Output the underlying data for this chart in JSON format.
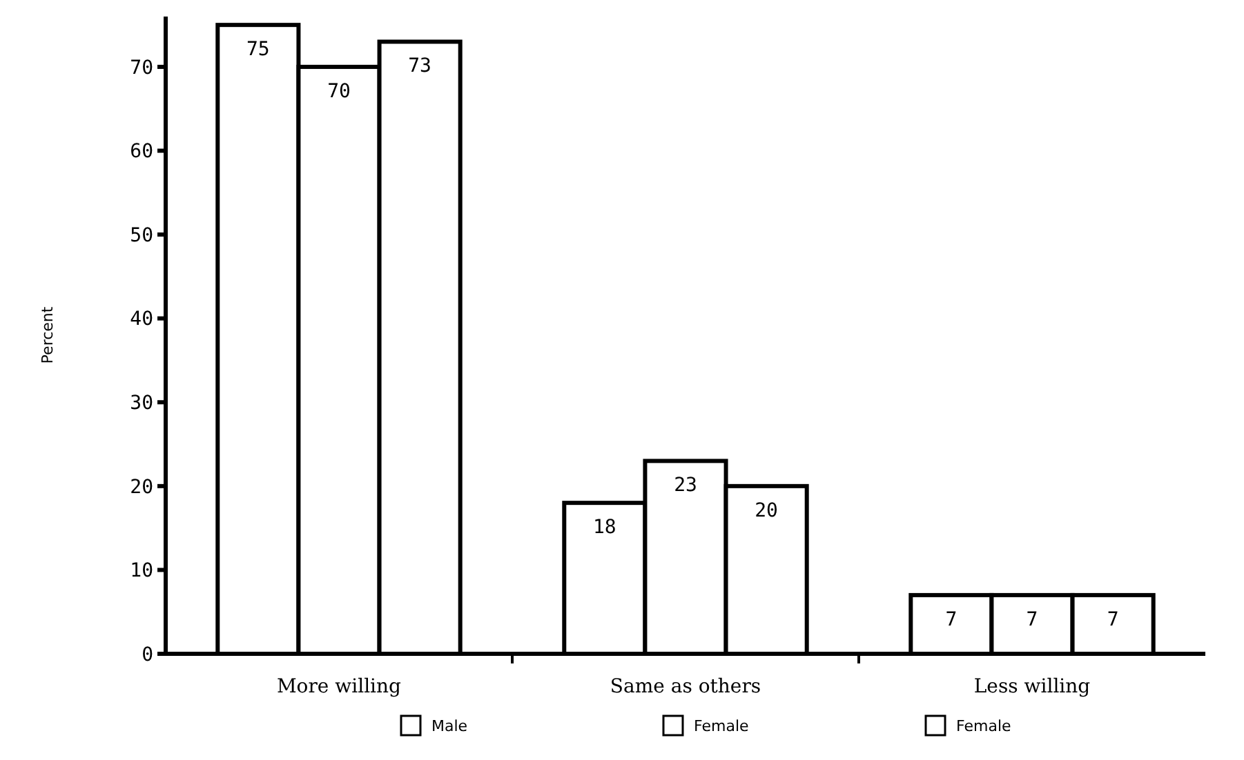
{
  "chart_data": {
    "type": "bar",
    "ylabel": "Percent",
    "categories": [
      "More willing",
      "Same as others",
      "Less willing"
    ],
    "series": [
      {
        "name": "Male",
        "color": "#ffffff",
        "values": [
          75,
          18,
          7
        ]
      },
      {
        "name": "Female",
        "color": "#ffffff",
        "values": [
          70,
          23,
          7
        ]
      },
      {
        "name": "Female",
        "color": "#ffffff",
        "values": [
          73,
          20,
          7
        ]
      }
    ],
    "ylim": [
      0,
      76
    ],
    "yticks": [
      0,
      10,
      20,
      30,
      40,
      50,
      60,
      70
    ],
    "grid": false,
    "legend": "bottom",
    "data_labels": true
  }
}
